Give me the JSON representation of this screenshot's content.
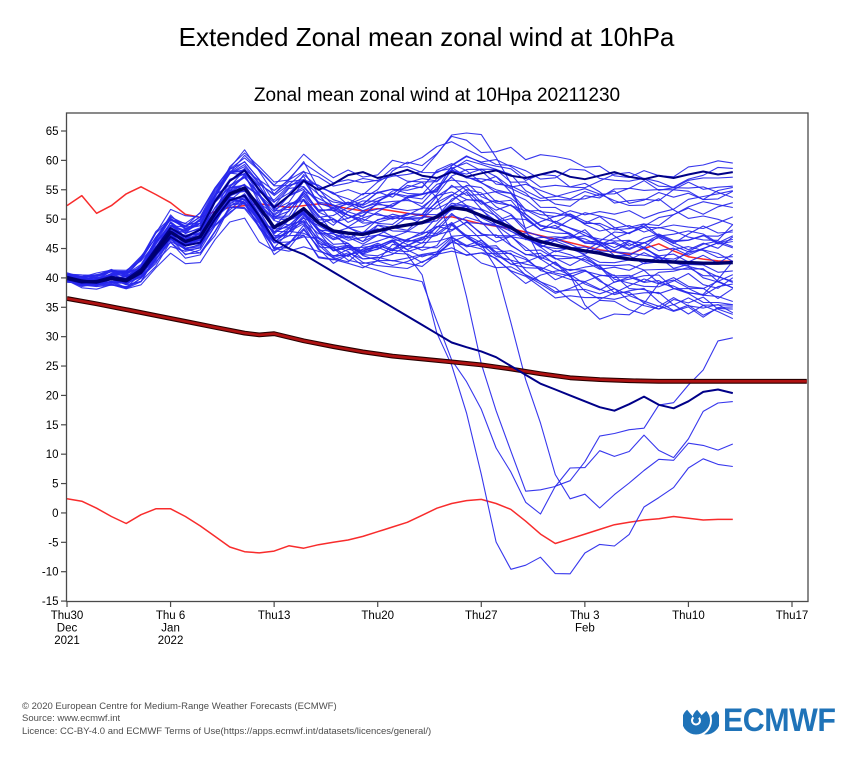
{
  "page": {
    "title": "Extended Zonal mean zonal wind at 10hPa"
  },
  "footer": {
    "line1": "© 2020 European Centre for Medium-Range Weather Forecasts (ECMWF)",
    "line2": "Source: www.ecmwf.int",
    "line3": "Licence: CC-BY-4.0 and ECMWF Terms of Use(https://apps.ecmwf.int/datasets/licences/general/)"
  },
  "logo": {
    "text": "ECMWF",
    "color": "#1f73b8"
  },
  "chart_data": {
    "type": "line",
    "title": "Zonal mean zonal wind at 10Hpa 20211230",
    "x_axis": {
      "unit": "days since 2021-12-30",
      "tick_days": [
        0,
        7,
        14,
        21,
        28,
        35,
        42,
        49
      ],
      "tick_labels": [
        [
          "Thu30",
          "Dec",
          "2021"
        ],
        [
          "Thu 6",
          "Jan",
          "2022"
        ],
        [
          "Thu13"
        ],
        [
          "Thu20"
        ],
        [
          "Thu27"
        ],
        [
          "Thu 3",
          "Feb"
        ],
        [
          "Thu10"
        ],
        [
          "Thu17"
        ]
      ],
      "day_range": [
        0,
        50.1
      ],
      "forecast_end_day": 45
    },
    "y_axis": {
      "ticks": [
        65,
        60,
        55,
        50,
        45,
        40,
        35,
        30,
        25,
        20,
        15,
        10,
        5,
        0,
        -5,
        -10,
        -15
      ],
      "range_at_border": [
        -15.1,
        68.1
      ]
    },
    "grid": false,
    "legend": false,
    "colors": {
      "members": "#2626ec",
      "mean": "#00006e",
      "highlight": "#000088",
      "red_line": "#f82c2c",
      "climatology_core": "#b01212",
      "climatology_edge": "#2a0000",
      "axis": "#4a4a4a",
      "text": "#000000"
    },
    "series": {
      "ensemble_mean": [
        [
          0,
          40
        ],
        [
          1,
          39.4
        ],
        [
          2,
          39.3
        ],
        [
          3,
          39.9
        ],
        [
          4,
          39.5
        ],
        [
          5,
          41
        ],
        [
          6,
          44.5
        ],
        [
          7,
          47.8
        ],
        [
          8,
          46.2
        ],
        [
          9,
          47
        ],
        [
          10,
          51
        ],
        [
          11,
          54.3
        ],
        [
          12,
          55.3
        ],
        [
          13,
          52
        ],
        [
          14,
          48.6
        ],
        [
          15,
          50
        ],
        [
          16,
          51.8
        ],
        [
          17,
          49.4
        ],
        [
          18,
          48
        ],
        [
          19,
          47.6
        ],
        [
          20,
          47.4
        ],
        [
          21,
          48
        ],
        [
          22,
          48.6
        ],
        [
          23,
          49
        ],
        [
          24,
          49.4
        ],
        [
          25,
          50.4
        ],
        [
          26,
          52
        ],
        [
          27,
          51.6
        ],
        [
          28,
          50.6
        ],
        [
          29,
          49.6
        ],
        [
          30,
          48.6
        ],
        [
          31,
          47
        ],
        [
          32,
          46.2
        ],
        [
          33,
          45.6
        ],
        [
          34,
          45
        ],
        [
          35,
          44.6
        ],
        [
          36,
          44.2
        ],
        [
          37,
          43.6
        ],
        [
          38,
          43.2
        ],
        [
          39,
          43
        ],
        [
          40,
          42.8
        ],
        [
          41,
          42.7
        ],
        [
          42,
          42.6
        ],
        [
          43,
          42.5
        ],
        [
          44,
          42.5
        ],
        [
          45,
          42.6
        ]
      ],
      "member_high": [
        [
          0,
          39.8
        ],
        [
          1,
          39.2
        ],
        [
          2,
          39.5
        ],
        [
          3,
          40.2
        ],
        [
          4,
          39.8
        ],
        [
          5,
          41.5
        ],
        [
          6,
          45
        ],
        [
          7,
          48.5
        ],
        [
          8,
          47
        ],
        [
          9,
          48.2
        ],
        [
          10,
          53
        ],
        [
          11,
          56.5
        ],
        [
          12,
          58.3
        ],
        [
          13,
          55
        ],
        [
          14,
          52
        ],
        [
          15,
          54
        ],
        [
          16,
          56.5
        ],
        [
          17,
          55
        ],
        [
          18,
          56
        ],
        [
          19,
          57.5
        ],
        [
          20,
          58
        ],
        [
          21,
          57
        ],
        [
          22,
          57.6
        ],
        [
          23,
          58.4
        ],
        [
          24,
          57.4
        ],
        [
          25,
          57
        ],
        [
          26,
          58
        ],
        [
          27,
          57.2
        ],
        [
          28,
          57.8
        ],
        [
          29,
          58.3
        ],
        [
          30,
          57.4
        ],
        [
          31,
          57
        ],
        [
          32,
          57.6
        ],
        [
          33,
          58.2
        ],
        [
          34,
          57.2
        ],
        [
          35,
          56.8
        ],
        [
          36,
          57.4
        ],
        [
          37,
          58
        ],
        [
          38,
          57.2
        ],
        [
          39,
          56.8
        ],
        [
          40,
          57.4
        ],
        [
          41,
          57
        ],
        [
          42,
          57.6
        ],
        [
          43,
          58.1
        ],
        [
          44,
          57.6
        ],
        [
          45,
          58
        ]
      ],
      "member_low": [
        [
          0,
          40.2
        ],
        [
          1,
          39.6
        ],
        [
          2,
          39.2
        ],
        [
          3,
          39.9
        ],
        [
          4,
          39.4
        ],
        [
          5,
          40.8
        ],
        [
          6,
          44
        ],
        [
          7,
          47
        ],
        [
          8,
          45.5
        ],
        [
          9,
          46
        ],
        [
          10,
          50
        ],
        [
          11,
          53.2
        ],
        [
          12,
          54
        ],
        [
          13,
          50.5
        ],
        [
          14,
          46.5
        ],
        [
          15,
          45
        ],
        [
          16,
          44
        ],
        [
          17,
          42.5
        ],
        [
          18,
          41
        ],
        [
          19,
          39.5
        ],
        [
          20,
          38
        ],
        [
          21,
          36.5
        ],
        [
          22,
          35
        ],
        [
          23,
          33.5
        ],
        [
          24,
          32
        ],
        [
          25,
          30.5
        ],
        [
          26,
          29
        ],
        [
          27,
          28.2
        ],
        [
          28,
          27.5
        ],
        [
          29,
          26.5
        ],
        [
          30,
          25
        ],
        [
          31,
          23.5
        ],
        [
          32,
          22
        ],
        [
          33,
          21
        ],
        [
          34,
          20
        ],
        [
          35,
          19
        ],
        [
          36,
          18
        ],
        [
          37,
          17.4
        ],
        [
          38,
          18.5
        ],
        [
          39,
          19.8
        ],
        [
          40,
          18.4
        ],
        [
          41,
          17.8
        ],
        [
          42,
          19
        ],
        [
          43,
          20.6
        ],
        [
          44,
          21
        ],
        [
          45,
          20.4
        ]
      ],
      "climatology": [
        [
          0,
          36.5
        ],
        [
          2,
          35.6
        ],
        [
          4,
          34.6
        ],
        [
          6,
          33.6
        ],
        [
          8,
          32.6
        ],
        [
          10,
          31.6
        ],
        [
          12,
          30.6
        ],
        [
          13,
          30.3
        ],
        [
          14,
          30.5
        ],
        [
          16,
          29.3
        ],
        [
          18,
          28.3
        ],
        [
          20,
          27.4
        ],
        [
          22,
          26.7
        ],
        [
          24,
          26.2
        ],
        [
          26,
          25.7
        ],
        [
          28,
          25.2
        ],
        [
          30,
          24.5
        ],
        [
          32,
          23.7
        ],
        [
          34,
          23
        ],
        [
          36,
          22.7
        ],
        [
          38,
          22.5
        ],
        [
          40,
          22.4
        ],
        [
          42,
          22.4
        ],
        [
          44,
          22.4
        ],
        [
          46,
          22.4
        ],
        [
          48,
          22.4
        ],
        [
          50,
          22.4
        ]
      ],
      "red_upper": [
        [
          0,
          52.3
        ],
        [
          1,
          54
        ],
        [
          2,
          51
        ],
        [
          3,
          52.3
        ],
        [
          4,
          54.3
        ],
        [
          5,
          55.5
        ],
        [
          6,
          54.2
        ],
        [
          7,
          52.8
        ],
        [
          8,
          50.8
        ],
        [
          9,
          50.3
        ],
        [
          10,
          51.3
        ],
        [
          11,
          52
        ],
        [
          12,
          52.3
        ],
        [
          13,
          52.6
        ],
        [
          14,
          52.3
        ],
        [
          15,
          52
        ],
        [
          16,
          52.3
        ],
        [
          17,
          52.6
        ],
        [
          18,
          52.3
        ],
        [
          19,
          51.8
        ],
        [
          20,
          51.4
        ],
        [
          21,
          51.8
        ],
        [
          22,
          51.4
        ],
        [
          23,
          51
        ],
        [
          24,
          50.6
        ],
        [
          25,
          50.2
        ],
        [
          26,
          50.4
        ],
        [
          27,
          49.8
        ],
        [
          28,
          49.2
        ],
        [
          29,
          48.8
        ],
        [
          30,
          48.4
        ],
        [
          31,
          47.8
        ],
        [
          32,
          47.2
        ],
        [
          33,
          46.6
        ],
        [
          34,
          46
        ],
        [
          35,
          45.4
        ],
        [
          36,
          44.8
        ],
        [
          37,
          44.4
        ],
        [
          38,
          44
        ],
        [
          39,
          45
        ],
        [
          40,
          45.8
        ],
        [
          41,
          44.6
        ],
        [
          42,
          43.6
        ],
        [
          43,
          43.2
        ],
        [
          44,
          42.9
        ],
        [
          45,
          42.8
        ]
      ],
      "red_lower": [
        [
          0,
          2.4
        ],
        [
          1,
          2
        ],
        [
          2,
          0.8
        ],
        [
          3,
          -0.6
        ],
        [
          4,
          -1.8
        ],
        [
          5,
          -0.3
        ],
        [
          6,
          0.7
        ],
        [
          7,
          0.7
        ],
        [
          8,
          -0.6
        ],
        [
          9,
          -2.2
        ],
        [
          10,
          -4
        ],
        [
          11,
          -5.8
        ],
        [
          12,
          -6.6
        ],
        [
          13,
          -6.8
        ],
        [
          14,
          -6.5
        ],
        [
          15,
          -5.6
        ],
        [
          16,
          -6
        ],
        [
          17,
          -5.4
        ],
        [
          18,
          -5
        ],
        [
          19,
          -4.6
        ],
        [
          20,
          -4
        ],
        [
          21,
          -3.2
        ],
        [
          22,
          -2.4
        ],
        [
          23,
          -1.6
        ],
        [
          24,
          -0.4
        ],
        [
          25,
          0.8
        ],
        [
          26,
          1.6
        ],
        [
          27,
          2.1
        ],
        [
          28,
          2.3
        ],
        [
          29,
          1.6
        ],
        [
          30,
          0.6
        ],
        [
          31,
          -1.4
        ],
        [
          32,
          -3.6
        ],
        [
          33,
          -5.2
        ],
        [
          34,
          -4.4
        ],
        [
          35,
          -3.6
        ],
        [
          36,
          -2.8
        ],
        [
          37,
          -2
        ],
        [
          38,
          -1.6
        ],
        [
          39,
          -1.2
        ],
        [
          40,
          -1
        ],
        [
          41,
          -0.6
        ],
        [
          42,
          -0.9
        ],
        [
          43,
          -1.2
        ],
        [
          44,
          -1.1
        ],
        [
          45,
          -1.1
        ]
      ]
    },
    "ensemble": {
      "count": 46,
      "seed": 20211230,
      "spread_profile": [
        [
          0,
          0.4
        ],
        [
          4,
          1
        ],
        [
          7,
          2
        ],
        [
          10,
          3.3
        ],
        [
          14,
          5
        ],
        [
          18,
          6
        ],
        [
          24,
          7.5
        ],
        [
          30,
          9
        ],
        [
          38,
          10.5
        ],
        [
          45,
          11.5
        ]
      ],
      "skew_high": 1.35,
      "skew_low": 0.85,
      "wiggle": 1.7,
      "tail_fraction": 0.14,
      "value_clamp": [
        -13.7,
        66.3
      ]
    }
  }
}
